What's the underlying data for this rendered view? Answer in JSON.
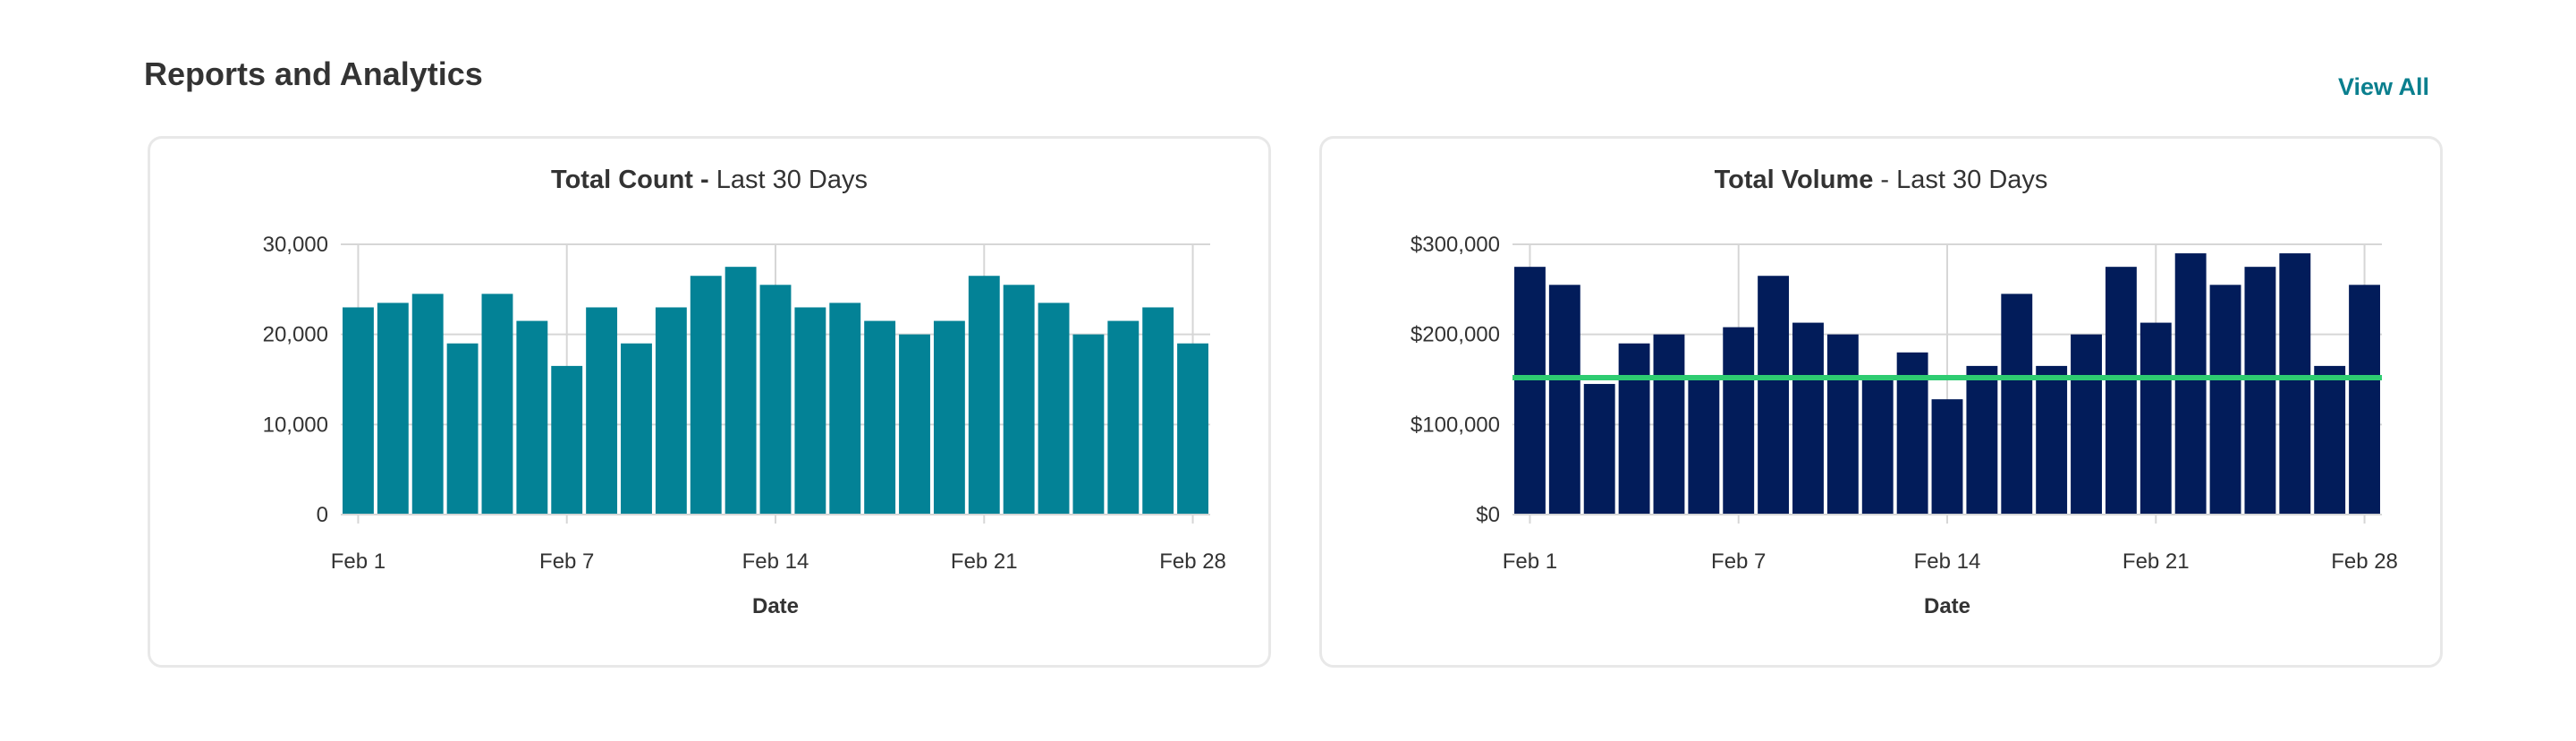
{
  "header": {
    "title": "Reports and Analytics",
    "view_all_label": "View All"
  },
  "colors": {
    "count_bar": "#038296",
    "volume_bar": "#021c5a",
    "average_line": "#2ecc71",
    "grid": "#d6d6d6",
    "link": "#0a7f8e"
  },
  "chart_data": [
    {
      "type": "bar",
      "title_bold": "Total Count -",
      "title_rest": " Last 30 Days",
      "xlabel": "Date",
      "ylabel": "",
      "ylim": [
        0,
        30000
      ],
      "y_ticks": [
        0,
        10000,
        20000,
        30000
      ],
      "y_tick_labels": [
        "0",
        "10,000",
        "20,000",
        "30,000"
      ],
      "x_tick_labels": [
        "Feb 1",
        "Feb 7",
        "Feb 14",
        "Feb 21",
        "Feb 28"
      ],
      "x_tick_index": [
        0,
        6,
        12,
        18,
        24
      ],
      "grid": true,
      "values": [
        23000,
        23500,
        24500,
        19000,
        24500,
        21500,
        16500,
        23000,
        19000,
        23000,
        26500,
        27500,
        25500,
        23000,
        23500,
        21500,
        20000,
        21500,
        26500,
        25500,
        23500,
        20000,
        21500,
        23000,
        19000
      ]
    },
    {
      "type": "bar",
      "title_bold": "Total Volume",
      "title_rest": " - Last 30 Days",
      "xlabel": "Date",
      "ylabel": "",
      "ylim": [
        0,
        300000
      ],
      "y_ticks": [
        0,
        100000,
        200000,
        300000
      ],
      "y_tick_labels": [
        "$0",
        "$100,000",
        "$200,000",
        "$300,000"
      ],
      "x_tick_labels": [
        "Feb 1",
        "Feb 7",
        "Feb 14",
        "Feb 21",
        "Feb 28"
      ],
      "x_tick_index": [
        0,
        6,
        12,
        18,
        24
      ],
      "grid": true,
      "reference_line": 152000,
      "values": [
        275000,
        255000,
        145000,
        190000,
        200000,
        150000,
        208000,
        265000,
        213000,
        200000,
        150000,
        180000,
        128000,
        165000,
        245000,
        165000,
        200000,
        275000,
        213000,
        290000,
        255000,
        275000,
        290000,
        165000,
        255000
      ]
    }
  ]
}
